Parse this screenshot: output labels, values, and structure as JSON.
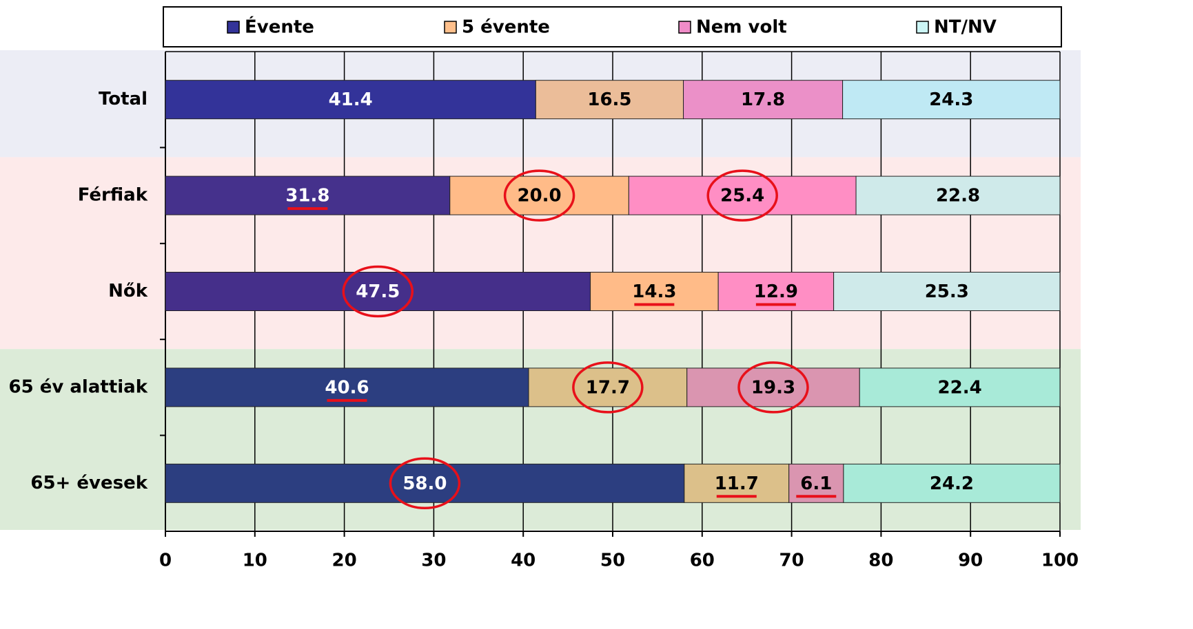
{
  "chart_data": {
    "type": "stacked_barh",
    "categories": [
      "Total",
      "Férfiak",
      "Nők",
      "65 év alattiak",
      "65+ évesek"
    ],
    "series": [
      {
        "name": "Évente",
        "color": "#333399",
        "colors": [
          "#333399",
          "#45318c",
          "#452f8a",
          "#2c3e80",
          "#2c3e80"
        ],
        "text_color": "#ffffff",
        "values": [
          41.4,
          31.8,
          47.5,
          40.6,
          58.0
        ],
        "value_labels": [
          "41.4",
          "31.8",
          "47.5",
          "40.6",
          "58.0"
        ]
      },
      {
        "name": "5 évente",
        "color": "#ffc08c",
        "colors": [
          "#ebbd99",
          "#ffbb88",
          "#ffbb88",
          "#dcc08a",
          "#dcc08a"
        ],
        "text_color": "#000000",
        "values": [
          16.5,
          20.0,
          14.3,
          17.7,
          11.7
        ],
        "value_labels": [
          "16.5",
          "20.0",
          "14.3",
          "17.7",
          "11.7"
        ]
      },
      {
        "name": "Nem volt",
        "color": "#f08cc8",
        "colors": [
          "#eb90c8",
          "#ff8ec4",
          "#ff8ec4",
          "#da95b0",
          "#da95b0"
        ],
        "text_color": "#000000",
        "values": [
          17.8,
          25.4,
          12.9,
          19.3,
          6.1
        ],
        "value_labels": [
          "17.8",
          "25.4",
          "12.9",
          "19.3",
          "6.1"
        ]
      },
      {
        "name": "NT/NV",
        "color": "#ccf5f5",
        "colors": [
          "#bfe9f4",
          "#cfeaea",
          "#cfeaea",
          "#a8ead8",
          "#a8ead8"
        ],
        "text_color": "#000000",
        "values": [
          24.3,
          22.8,
          25.3,
          22.4,
          24.2
        ],
        "value_labels": [
          "24.3",
          "22.8",
          "25.3",
          "22.4",
          "24.2"
        ]
      }
    ],
    "xlim": [
      0,
      100
    ],
    "xticks": [
      0,
      10,
      20,
      30,
      40,
      50,
      60,
      70,
      80,
      90,
      100
    ],
    "grid": true,
    "legend": "top",
    "row_backgrounds": [
      {
        "rows": [
          0,
          0
        ],
        "color": "#ecedf5"
      },
      {
        "rows": [
          1,
          2
        ],
        "color": "#fdeaea"
      },
      {
        "rows": [
          3,
          4
        ],
        "color": "#dcebd8"
      }
    ],
    "circled": [
      [
        1,
        1
      ],
      [
        2,
        1
      ],
      [
        0,
        2
      ],
      [
        1,
        3
      ],
      [
        2,
        3
      ],
      [
        0,
        4
      ]
    ],
    "underlined": [
      [
        0,
        1
      ],
      [
        1,
        2
      ],
      [
        2,
        2
      ],
      [
        0,
        3
      ],
      [
        1,
        4
      ],
      [
        2,
        4
      ]
    ]
  }
}
